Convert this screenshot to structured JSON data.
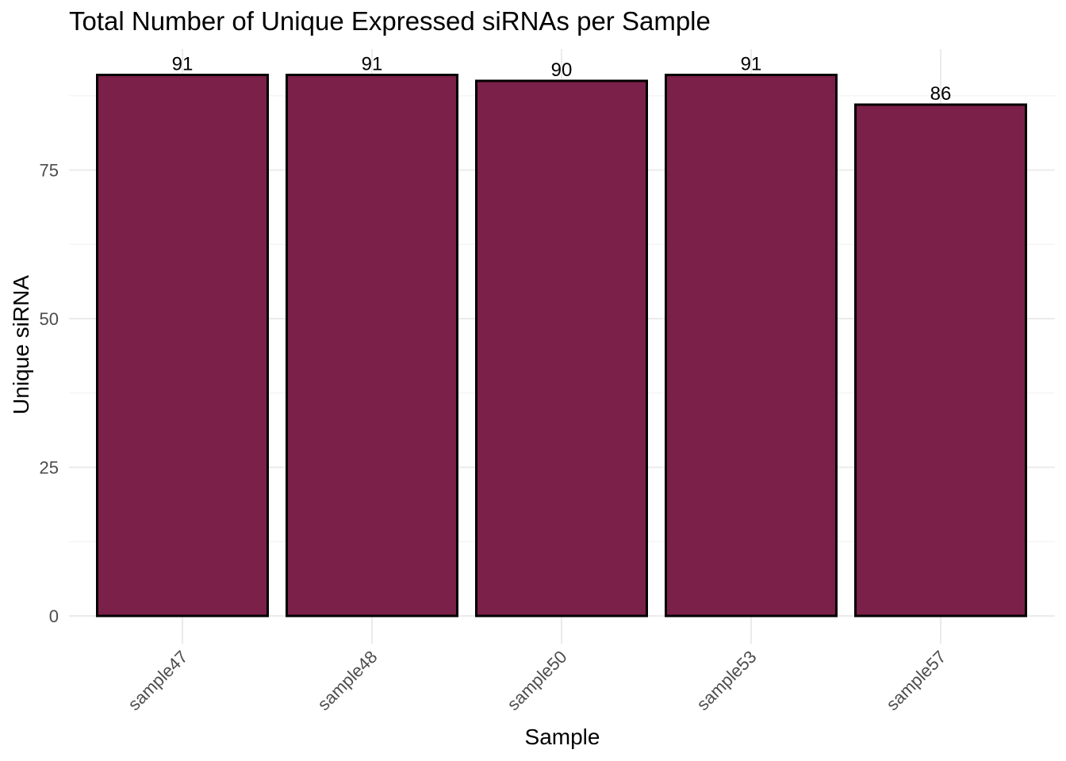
{
  "chart_data": {
    "type": "bar",
    "title": "Total Number of Unique Expressed siRNAs per Sample",
    "xlabel": "Sample",
    "ylabel": "Unique siRNA",
    "categories": [
      "sample47",
      "sample48",
      "sample50",
      "sample53",
      "sample57"
    ],
    "values": [
      91,
      91,
      90,
      91,
      86
    ],
    "data_labels": [
      "91",
      "91",
      "90",
      "91",
      "86"
    ],
    "y_ticks": [
      0,
      25,
      50,
      75
    ],
    "ylim": [
      0,
      91
    ],
    "grid": true,
    "legend": "none",
    "x_tick_rotation": "45 degrees",
    "colors": {
      "bar_fill": "#7B2048",
      "bar_outline": "#000000",
      "grid": "#EBEBEB"
    }
  }
}
